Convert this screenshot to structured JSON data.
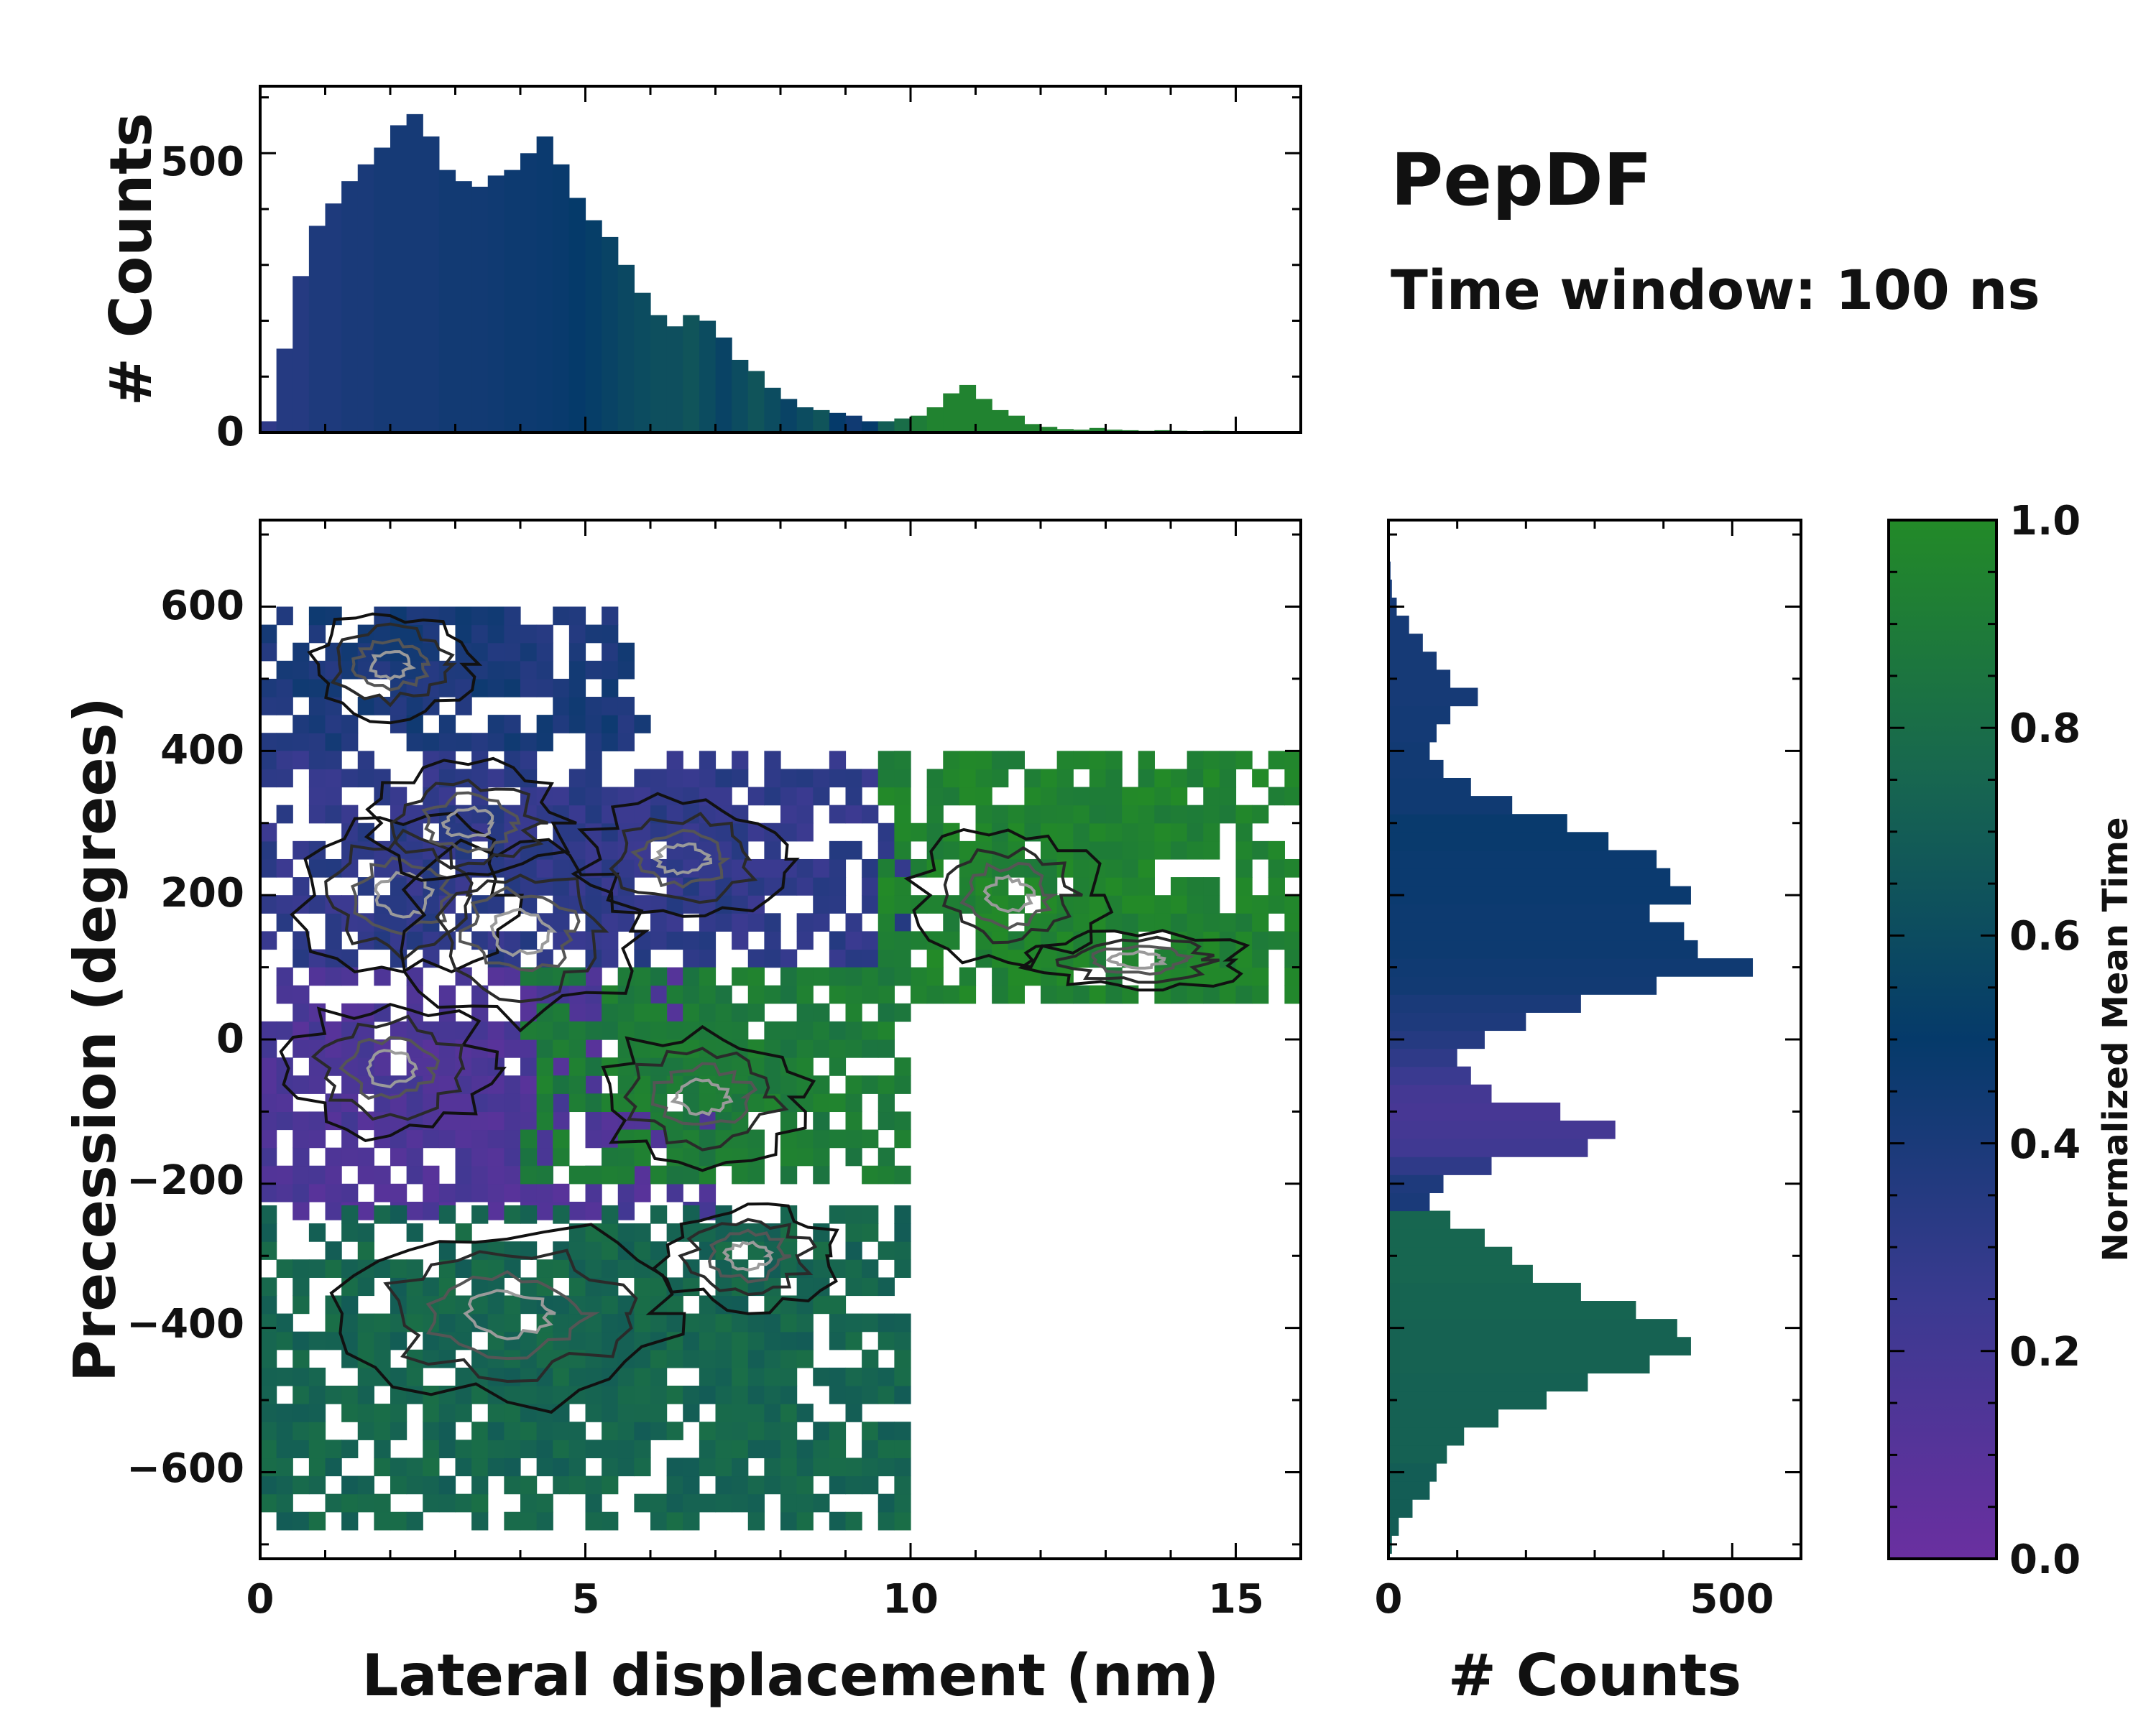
{
  "chart_data": [
    {
      "id": "joint",
      "type": "heatmap",
      "xlabel": "Lateral displacement (nm)",
      "ylabel": "Precession (degrees)",
      "xlim": [
        0,
        16
      ],
      "ylim": [
        -720,
        720
      ],
      "xticks": [
        0,
        5,
        10,
        15
      ],
      "yticks": [
        -600,
        -400,
        -200,
        0,
        200,
        400,
        600
      ],
      "xtick_labels": [
        "0",
        "5",
        "10",
        "15"
      ],
      "ytick_labels": [
        "−600",
        "−400",
        "−200",
        "0",
        "200",
        "400",
        "600"
      ],
      "color_value": "normalized mean time",
      "regions": [
        {
          "name": "upper-left blue",
          "x_range": [
            0,
            6
          ],
          "y_range": [
            400,
            600
          ],
          "time": 0.4
        },
        {
          "name": "upper purple-blue",
          "x_range": [
            0,
            10
          ],
          "y_range": [
            100,
            400
          ],
          "time": 0.3
        },
        {
          "name": "upper green tail",
          "x_range": [
            9.5,
            16
          ],
          "y_range": [
            50,
            380
          ],
          "time": 0.95
        },
        {
          "name": "middle purple",
          "x_range": [
            0,
            7
          ],
          "y_range": [
            -250,
            100
          ],
          "time": 0.15
        },
        {
          "name": "middle green",
          "x_range": [
            4,
            10
          ],
          "y_range": [
            -200,
            100
          ],
          "time": 0.9
        },
        {
          "name": "lower green",
          "x_range": [
            0,
            10
          ],
          "y_range": [
            -680,
            -250
          ],
          "time": 0.75
        }
      ]
    },
    {
      "id": "top-histogram",
      "type": "bar",
      "ylabel": "# Counts",
      "xlim": [
        0,
        16
      ],
      "ylim": [
        0,
        620
      ],
      "yticks": [
        0,
        500
      ],
      "ytick_labels": [
        "0",
        "500"
      ],
      "x": [
        0.0,
        0.25,
        0.5,
        0.75,
        1.0,
        1.25,
        1.5,
        1.75,
        2.0,
        2.25,
        2.5,
        2.75,
        3.0,
        3.25,
        3.5,
        3.75,
        4.0,
        4.25,
        4.5,
        4.75,
        5.0,
        5.25,
        5.5,
        5.75,
        6.0,
        6.25,
        6.5,
        6.75,
        7.0,
        7.25,
        7.5,
        7.75,
        8.0,
        8.25,
        8.5,
        8.75,
        9.0,
        9.25,
        9.5,
        9.75,
        10.0,
        10.25,
        10.5,
        10.75,
        11.0,
        11.25,
        11.5,
        11.75,
        12.0,
        12.25,
        12.5,
        12.75,
        13.0,
        13.25,
        13.5,
        13.75,
        14.0,
        14.25,
        14.5,
        14.75,
        15.0,
        15.25,
        15.5,
        15.75
      ],
      "values": [
        20,
        150,
        280,
        370,
        410,
        450,
        480,
        510,
        550,
        570,
        530,
        470,
        450,
        440,
        460,
        470,
        500,
        530,
        480,
        420,
        380,
        350,
        300,
        250,
        210,
        190,
        210,
        200,
        170,
        130,
        110,
        80,
        60,
        45,
        40,
        35,
        30,
        20,
        20,
        25,
        30,
        45,
        70,
        85,
        60,
        40,
        30,
        15,
        10,
        6,
        5,
        8,
        5,
        4,
        3,
        4,
        3,
        2,
        3,
        2,
        2,
        1,
        1,
        0
      ],
      "times": [
        0.3,
        0.35,
        0.35,
        0.38,
        0.38,
        0.4,
        0.4,
        0.42,
        0.42,
        0.42,
        0.42,
        0.44,
        0.44,
        0.44,
        0.45,
        0.46,
        0.46,
        0.47,
        0.48,
        0.5,
        0.52,
        0.55,
        0.58,
        0.6,
        0.62,
        0.62,
        0.65,
        0.6,
        0.55,
        0.6,
        0.65,
        0.6,
        0.55,
        0.6,
        0.65,
        0.5,
        0.45,
        0.5,
        0.7,
        0.8,
        0.9,
        0.95,
        0.95,
        0.95,
        0.95,
        0.95,
        0.95,
        0.95,
        0.95,
        0.95,
        0.95,
        0.95,
        0.95,
        0.95,
        0.95,
        0.95,
        0.95,
        0.95,
        0.95,
        0.95,
        0.95,
        0.95,
        0.95,
        0.95
      ]
    },
    {
      "id": "right-histogram",
      "type": "bar",
      "orientation": "horizontal",
      "xlabel": "# Counts",
      "xlim": [
        0,
        600
      ],
      "ylim": [
        -720,
        720
      ],
      "xticks": [
        0,
        500
      ],
      "xtick_labels": [
        "0",
        "500"
      ],
      "y": [
        -700,
        -675,
        -650,
        -625,
        -600,
        -575,
        -550,
        -525,
        -500,
        -475,
        -450,
        -425,
        -400,
        -375,
        -350,
        -325,
        -300,
        -275,
        -250,
        -225,
        -200,
        -175,
        -150,
        -125,
        -100,
        -75,
        -50,
        -25,
        0,
        25,
        50,
        75,
        100,
        125,
        150,
        175,
        200,
        225,
        250,
        275,
        300,
        325,
        350,
        375,
        400,
        425,
        450,
        475,
        500,
        525,
        550,
        575,
        600,
        625,
        650,
        675,
        700
      ],
      "values": [
        5,
        15,
        35,
        60,
        70,
        85,
        110,
        160,
        230,
        290,
        380,
        440,
        420,
        360,
        280,
        210,
        180,
        140,
        90,
        60,
        80,
        150,
        290,
        330,
        250,
        150,
        120,
        100,
        140,
        200,
        280,
        390,
        530,
        450,
        430,
        380,
        440,
        410,
        390,
        320,
        260,
        180,
        120,
        80,
        60,
        70,
        90,
        130,
        90,
        70,
        50,
        30,
        12,
        5,
        3,
        2,
        1
      ],
      "times": [
        0.7,
        0.7,
        0.7,
        0.7,
        0.7,
        0.72,
        0.72,
        0.72,
        0.72,
        0.72,
        0.73,
        0.73,
        0.73,
        0.74,
        0.74,
        0.75,
        0.75,
        0.75,
        0.75,
        0.4,
        0.38,
        0.3,
        0.22,
        0.2,
        0.18,
        0.2,
        0.25,
        0.3,
        0.35,
        0.38,
        0.4,
        0.44,
        0.45,
        0.46,
        0.46,
        0.46,
        0.47,
        0.47,
        0.47,
        0.48,
        0.48,
        0.45,
        0.45,
        0.44,
        0.44,
        0.43,
        0.43,
        0.42,
        0.42,
        0.42,
        0.42,
        0.42,
        0.42,
        0.42,
        0.42,
        0.42,
        0.42
      ]
    },
    {
      "id": "colorbar",
      "type": "colorbar",
      "label": "Normalized Mean Time",
      "range": [
        0.0,
        1.0
      ],
      "ticks": [
        0.0,
        0.2,
        0.4,
        0.6,
        0.8,
        1.0
      ],
      "tick_labels": [
        "0.0",
        "0.2",
        "0.4",
        "0.6",
        "0.8",
        "1.0"
      ],
      "colormap": [
        "#6a2fa0",
        "#3a3a90",
        "#053a6a",
        "#176650",
        "#238a28"
      ]
    }
  ],
  "annotation": {
    "title": "PepDF",
    "subtitle": "Time window: 100 ns"
  }
}
